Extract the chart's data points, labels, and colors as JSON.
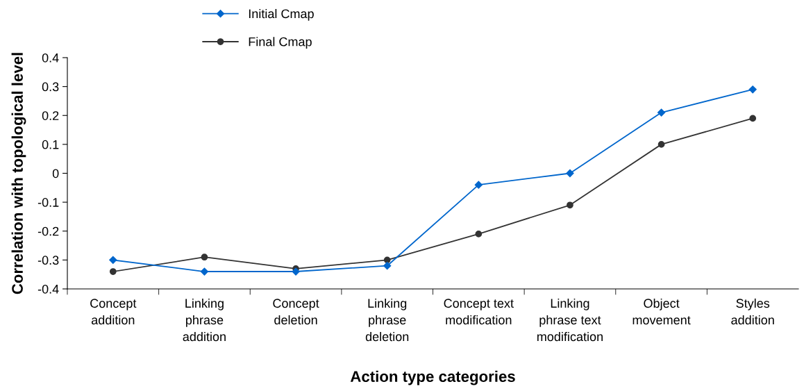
{
  "chart_data": {
    "type": "line",
    "xlabel": "Action type categories",
    "ylabel": "Correlation with topological level",
    "categories": [
      "Concept\naddition",
      "Linking\nphrase\naddition",
      "Concept\ndeletion",
      "Linking\nphrase\ndeletion",
      "Concept text\nmodification",
      "Linking\nphrase text\nmodification",
      "Object\nmovement",
      "Styles\naddition"
    ],
    "series": [
      {
        "name": "Initial Cmap",
        "color": "#0066cc",
        "marker": "diamond",
        "values": [
          -0.3,
          -0.34,
          -0.34,
          -0.32,
          -0.04,
          0.0,
          0.21,
          0.29
        ]
      },
      {
        "name": "Final Cmap",
        "color": "#333333",
        "marker": "circle",
        "values": [
          -0.34,
          -0.29,
          -0.33,
          -0.3,
          -0.21,
          -0.11,
          0.1,
          0.19
        ]
      }
    ],
    "ylim": [
      -0.4,
      0.4
    ],
    "yticks": [
      {
        "value": -0.4,
        "label": "-0.4"
      },
      {
        "value": -0.3,
        "label": "-0.3"
      },
      {
        "value": -0.2,
        "label": "-0.2"
      },
      {
        "value": -0.1,
        "label": "-0.1"
      },
      0,
      0.1,
      0.2,
      0.3,
      0.4
    ],
    "grid": false,
    "legend": "top",
    "line_style": "solid"
  }
}
